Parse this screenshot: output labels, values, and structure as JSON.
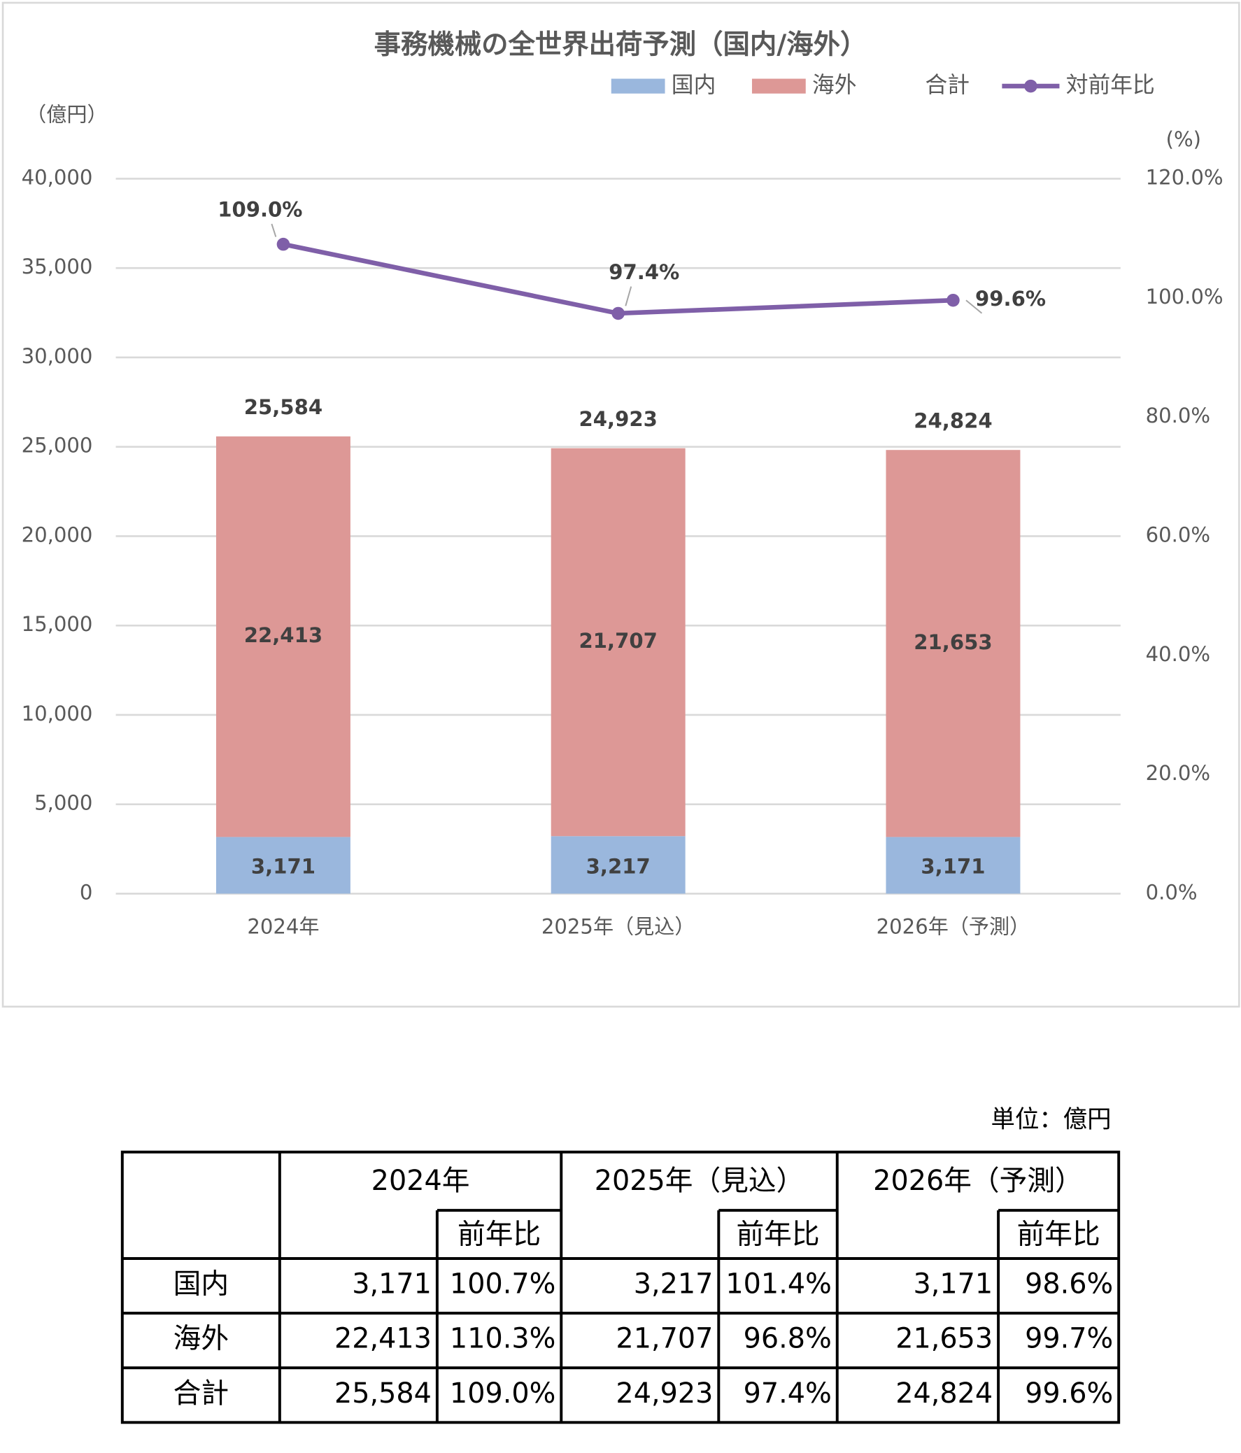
{
  "chart_data": {
    "type": "bar",
    "stacked": true,
    "title": "事務機械の全世界出荷予測（国内/海外）",
    "y_label": "（億円）",
    "y2_label": "(%)",
    "categories": [
      "2024年",
      "2025年（見込）",
      "2026年（予測）"
    ],
    "series": [
      {
        "name": "国内",
        "color": "#9ab7dd",
        "values": [
          3171,
          3217,
          3171
        ],
        "value_labels": [
          "3,171",
          "3,217",
          "3,171"
        ]
      },
      {
        "name": "海外",
        "color": "#dd9896",
        "values": [
          22413,
          21707,
          21653
        ],
        "value_labels": [
          "22,413",
          "21,707",
          "21,653"
        ]
      },
      {
        "name": "合計",
        "type": "total",
        "values": [
          25584,
          24923,
          24824
        ],
        "value_labels": [
          "25,584",
          "24,923",
          "24,824"
        ]
      },
      {
        "name": "対前年比",
        "type": "line",
        "axis": "y2",
        "color": "#7f5fa8",
        "values": [
          109.0,
          97.4,
          99.6
        ],
        "value_labels": [
          "109.0%",
          "97.4%",
          "99.6%"
        ]
      }
    ],
    "ylim": [
      0,
      40000
    ],
    "yticks": [
      0,
      {
        "value": 5000,
        "label": "5,000"
      },
      {
        "value": 10000,
        "label": "10,000"
      },
      {
        "value": 15000,
        "label": "15,000"
      },
      {
        "value": 20000,
        "label": "20,000"
      },
      {
        "value": 25000,
        "label": "25,000"
      },
      {
        "value": 30000,
        "label": "30,000"
      },
      {
        "value": 35000,
        "label": "35,000"
      },
      {
        "value": 40000,
        "label": "40,000"
      }
    ],
    "y2lim": [
      0,
      120
    ],
    "y2ticks": [
      {
        "value": 0,
        "label": "0.0%"
      },
      {
        "value": 20,
        "label": "20.0%"
      },
      {
        "value": 40,
        "label": "40.0%"
      },
      {
        "value": 60,
        "label": "60.0%"
      },
      {
        "value": 80,
        "label": "80.0%"
      },
      {
        "value": 100,
        "label": "100.0%"
      },
      {
        "value": 120,
        "label": "120.0%"
      }
    ],
    "grid": true
  },
  "table": {
    "unit": "単位：億円",
    "header": [
      "2024年",
      "2025年（見込）",
      "2026年（予測）"
    ],
    "sub_header": [
      "前年比",
      "前年比",
      "前年比"
    ],
    "rows": [
      [
        "国内",
        "3,171",
        "100.7%",
        "3,217",
        "101.4%",
        "3,171",
        "98.6%"
      ],
      [
        "海外",
        "22,413",
        "110.3%",
        "21,707",
        "96.8%",
        "21,653",
        "99.7%"
      ],
      [
        "合計",
        "25,584",
        "109.0%",
        "24,923",
        "97.4%",
        "24,824",
        "99.6%"
      ]
    ]
  }
}
